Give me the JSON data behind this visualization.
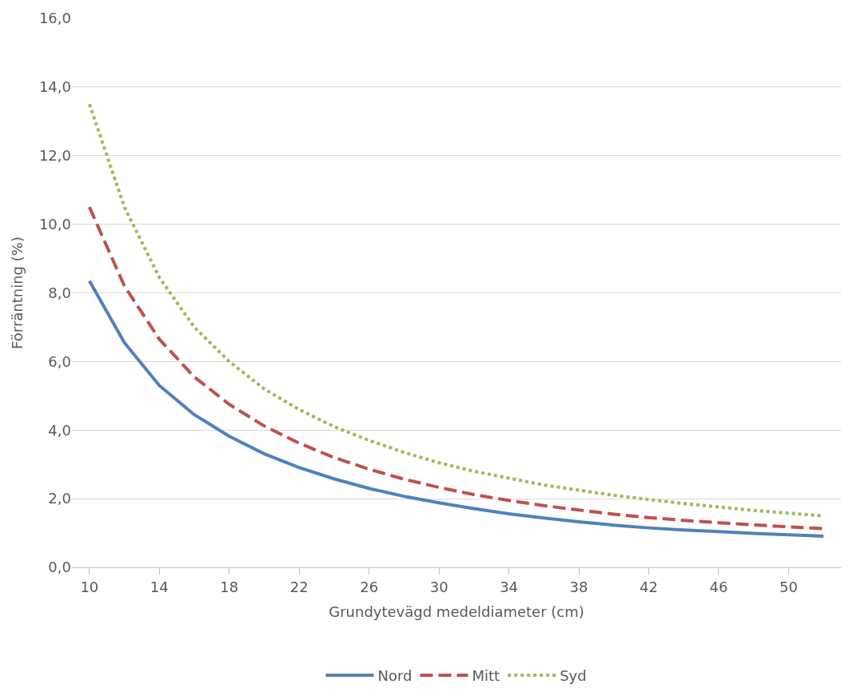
{
  "chart_data": {
    "type": "line",
    "xlabel": "Grundytevägd medeldiameter (cm)",
    "ylabel": "Förräntning (%)",
    "categories": [
      "10",
      null,
      "14",
      null,
      "18",
      null,
      "22",
      null,
      "26",
      null,
      "30",
      null,
      "34",
      null,
      "38",
      null,
      "42",
      null,
      "46",
      null,
      "50",
      null
    ],
    "series": [
      {
        "name": "Nord",
        "color": "#4f81bd",
        "line_style": "solid",
        "values": [
          8.35,
          6.55,
          5.3,
          4.45,
          3.82,
          3.31,
          2.91,
          2.58,
          2.3,
          2.07,
          1.88,
          1.71,
          1.56,
          1.44,
          1.33,
          1.23,
          1.15,
          1.09,
          1.04,
          0.99,
          0.95,
          0.91
        ]
      },
      {
        "name": "Mitt",
        "color": "#c0504d",
        "line_style": "dashed",
        "values": [
          10.5,
          8.2,
          6.65,
          5.55,
          4.75,
          4.12,
          3.62,
          3.2,
          2.86,
          2.57,
          2.33,
          2.12,
          1.95,
          1.8,
          1.67,
          1.55,
          1.45,
          1.37,
          1.3,
          1.24,
          1.18,
          1.13
        ]
      },
      {
        "name": "Syd",
        "color": "#9bbb59",
        "line_style": "dotted",
        "values": [
          13.5,
          10.5,
          8.45,
          7.0,
          6.0,
          5.2,
          4.6,
          4.1,
          3.7,
          3.35,
          3.05,
          2.8,
          2.6,
          2.4,
          2.25,
          2.1,
          1.98,
          1.86,
          1.76,
          1.66,
          1.58,
          1.5
        ]
      }
    ],
    "ylim": [
      0,
      16
    ],
    "yticks": [
      {
        "value": 0,
        "label": "0,0"
      },
      {
        "value": 2,
        "label": "2,0"
      },
      {
        "value": 4,
        "label": "4,0"
      },
      {
        "value": 6,
        "label": "6,0"
      },
      {
        "value": 8,
        "label": "8,0"
      },
      {
        "value": 10,
        "label": "10,0"
      },
      {
        "value": 12,
        "label": "12,0"
      },
      {
        "value": 14,
        "label": "14,0"
      },
      {
        "value": 16,
        "label": "16,0"
      }
    ],
    "grid": "y",
    "legend": "bottom",
    "marker": "none"
  }
}
